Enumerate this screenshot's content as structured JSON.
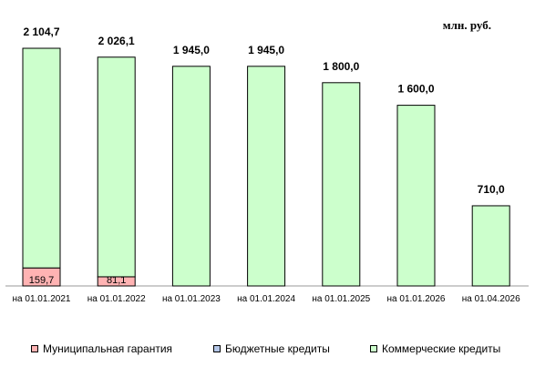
{
  "unit_label": "млн. руб.",
  "chart_data": {
    "type": "bar",
    "stacked": true,
    "categories": [
      "на 01.01.2021",
      "на 01.01.2022",
      "на 01.01.2023",
      "на 01.01.2024",
      "на 01.01.2025",
      "на 01.01.2026",
      "на 01.04.2026"
    ],
    "series": [
      {
        "name": "Муниципальная гарантия",
        "color": "#ffb3b3",
        "values": [
          159.7,
          81.1,
          0,
          0,
          0,
          0,
          0
        ],
        "labels": [
          "159,7",
          "81,1",
          "",
          "",
          "",
          "",
          ""
        ]
      },
      {
        "name": "Бюджетные кредиты",
        "color": "#b4c6e7",
        "values": [
          0,
          0,
          0,
          0,
          0,
          0,
          0
        ]
      },
      {
        "name": "Коммерческие кредиты",
        "color": "#ccffcc",
        "values": [
          1945.0,
          1945.0,
          1945.0,
          1945.0,
          1800.0,
          1600.0,
          710.0
        ]
      }
    ],
    "totals": [
      "2 104,7",
      "2 026,1",
      "1 945,0",
      "1 945,0",
      "1 800,0",
      "1 600,0",
      "710,0"
    ],
    "total_values": [
      2104.7,
      2026.1,
      1945.0,
      1945.0,
      1800.0,
      1600.0,
      710.0
    ],
    "ylim": [
      0,
      2300
    ],
    "grid": false,
    "legend_position": "bottom"
  }
}
